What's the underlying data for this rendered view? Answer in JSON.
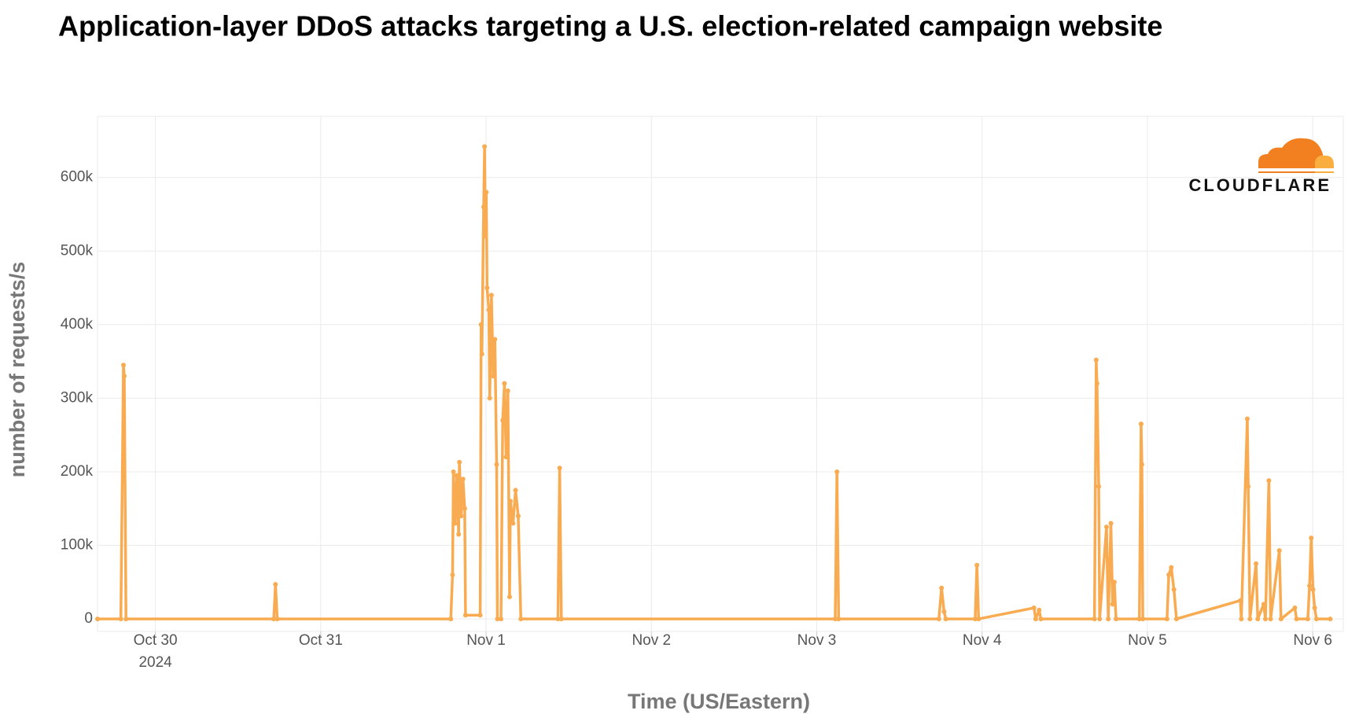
{
  "chart_data": {
    "type": "line",
    "title": "Application-layer DDoS attacks targeting a U.S. election-related campaign website",
    "x_label": "Time (US/Eastern)",
    "y_label": "number of requests/s",
    "logo_text": "CLOUDFLARE",
    "x_axis_year": "2024",
    "grid": true,
    "xlim": [
      "2024-10-29T15:36",
      "2024-11-06T04:26"
    ],
    "ylim": [
      -17000,
      683000
    ],
    "xticks": [
      {
        "value": "2024-10-30T00:00",
        "label": "Oct 30"
      },
      {
        "value": "2024-10-31T00:00",
        "label": "Oct 31"
      },
      {
        "value": "2024-11-01T00:00",
        "label": "Nov 1"
      },
      {
        "value": "2024-11-02T00:00",
        "label": "Nov 2"
      },
      {
        "value": "2024-11-03T00:00",
        "label": "Nov 3"
      },
      {
        "value": "2024-11-04T00:00",
        "label": "Nov 4"
      },
      {
        "value": "2024-11-05T00:00",
        "label": "Nov 5"
      },
      {
        "value": "2024-11-06T00:00",
        "label": "Nov 6"
      }
    ],
    "yticks": [
      {
        "value": 0,
        "label": "0"
      },
      {
        "value": 100000,
        "label": "100k"
      },
      {
        "value": 200000,
        "label": "200k"
      },
      {
        "value": 300000,
        "label": "300k"
      },
      {
        "value": 400000,
        "label": "400k"
      },
      {
        "value": 500000,
        "label": "500k"
      },
      {
        "value": 600000,
        "label": "600k"
      }
    ],
    "series": [
      {
        "name": "requests/s",
        "color": "#f9ab52",
        "x": [
          "2024-10-29T15:36",
          "2024-10-29T18:59",
          "2024-10-29T19:22",
          "2024-10-29T19:29",
          "2024-10-29T19:44",
          "2024-10-30T17:11",
          "2024-10-30T17:26",
          "2024-10-30T17:41",
          "2024-10-31T18:53",
          "2024-10-31T19:08",
          "2024-10-31T19:16",
          "2024-10-31T19:31",
          "2024-10-31T19:46",
          "2024-10-31T20:01",
          "2024-10-31T20:08",
          "2024-10-31T20:23",
          "2024-10-31T20:39",
          "2024-10-31T20:54",
          "2024-10-31T21:01",
          "2024-10-31T23:09",
          "2024-10-31T23:17",
          "2024-10-31T23:24",
          "2024-10-31T23:39",
          "2024-10-31T23:47",
          "2024-10-31T23:54",
          "2024-11-01T00:02",
          "2024-11-01T00:09",
          "2024-11-01T00:24",
          "2024-11-01T00:32",
          "2024-11-01T00:47",
          "2024-11-01T01:02",
          "2024-11-01T01:17",
          "2024-11-01T01:32",
          "2024-11-01T01:39",
          "2024-11-01T02:10",
          "2024-11-01T02:25",
          "2024-11-01T02:40",
          "2024-11-01T02:55",
          "2024-11-01T03:10",
          "2024-11-01T03:25",
          "2024-11-01T03:32",
          "2024-11-01T03:55",
          "2024-11-01T04:17",
          "2024-11-01T04:40",
          "2024-11-01T05:03",
          "2024-11-01T10:26",
          "2024-11-01T10:41",
          "2024-11-01T10:56",
          "2024-11-03T02:41",
          "2024-11-03T02:56",
          "2024-11-03T03:11",
          "2024-11-03T17:44",
          "2024-11-03T18:07",
          "2024-11-03T18:29",
          "2024-11-03T18:44",
          "2024-11-03T23:00",
          "2024-11-03T23:15",
          "2024-11-03T23:30",
          "2024-11-04T07:32",
          "2024-11-04T07:47",
          "2024-11-04T08:17",
          "2024-11-04T08:32",
          "2024-11-04T16:19",
          "2024-11-04T16:34",
          "2024-11-04T16:41",
          "2024-11-04T16:56",
          "2024-11-04T17:04",
          "2024-11-04T18:04",
          "2024-11-04T18:19",
          "2024-11-04T18:42",
          "2024-11-04T18:57",
          "2024-11-04T19:12",
          "2024-11-04T19:27",
          "2024-11-04T22:50",
          "2024-11-04T23:05",
          "2024-11-04T23:12",
          "2024-11-04T23:20",
          "2024-11-05T02:51",
          "2024-11-05T03:06",
          "2024-11-05T03:28",
          "2024-11-05T03:51",
          "2024-11-05T04:13",
          "2024-11-05T13:30",
          "2024-11-05T13:38",
          "2024-11-05T14:30",
          "2024-11-05T14:38",
          "2024-11-05T14:53",
          "2024-11-05T15:46",
          "2024-11-05T16:01",
          "2024-11-05T16:53",
          "2024-11-05T17:08",
          "2024-11-05T17:38",
          "2024-11-05T17:53",
          "2024-11-05T19:09",
          "2024-11-05T19:24",
          "2024-11-05T21:24",
          "2024-11-05T21:39",
          "2024-11-05T23:17",
          "2024-11-05T23:32",
          "2024-11-05T23:47",
          "2024-11-06T00:02",
          "2024-11-06T00:17",
          "2024-11-06T00:32",
          "2024-11-06T02:32"
        ],
        "values": [
          0,
          0,
          345000,
          330000,
          0,
          0,
          47000,
          0,
          0,
          60000,
          200000,
          130000,
          195000,
          115000,
          213000,
          140000,
          190000,
          150000,
          5000,
          5000,
          400000,
          360000,
          560000,
          642000,
          520000,
          580000,
          450000,
          420000,
          300000,
          440000,
          330000,
          380000,
          210000,
          0,
          0,
          270000,
          320000,
          220000,
          310000,
          30000,
          160000,
          130000,
          175000,
          140000,
          0,
          0,
          205000,
          0,
          0,
          200000,
          0,
          0,
          42000,
          10000,
          0,
          0,
          73000,
          0,
          15000,
          0,
          12000,
          0,
          0,
          352000,
          320000,
          180000,
          0,
          125000,
          0,
          130000,
          20000,
          50000,
          0,
          0,
          265000,
          210000,
          0,
          0,
          60000,
          70000,
          40000,
          0,
          25000,
          0,
          272000,
          180000,
          0,
          75000,
          0,
          20000,
          0,
          188000,
          0,
          93000,
          0,
          15000,
          0,
          0,
          45000,
          110000,
          40000,
          15000,
          0,
          0
        ]
      }
    ]
  }
}
